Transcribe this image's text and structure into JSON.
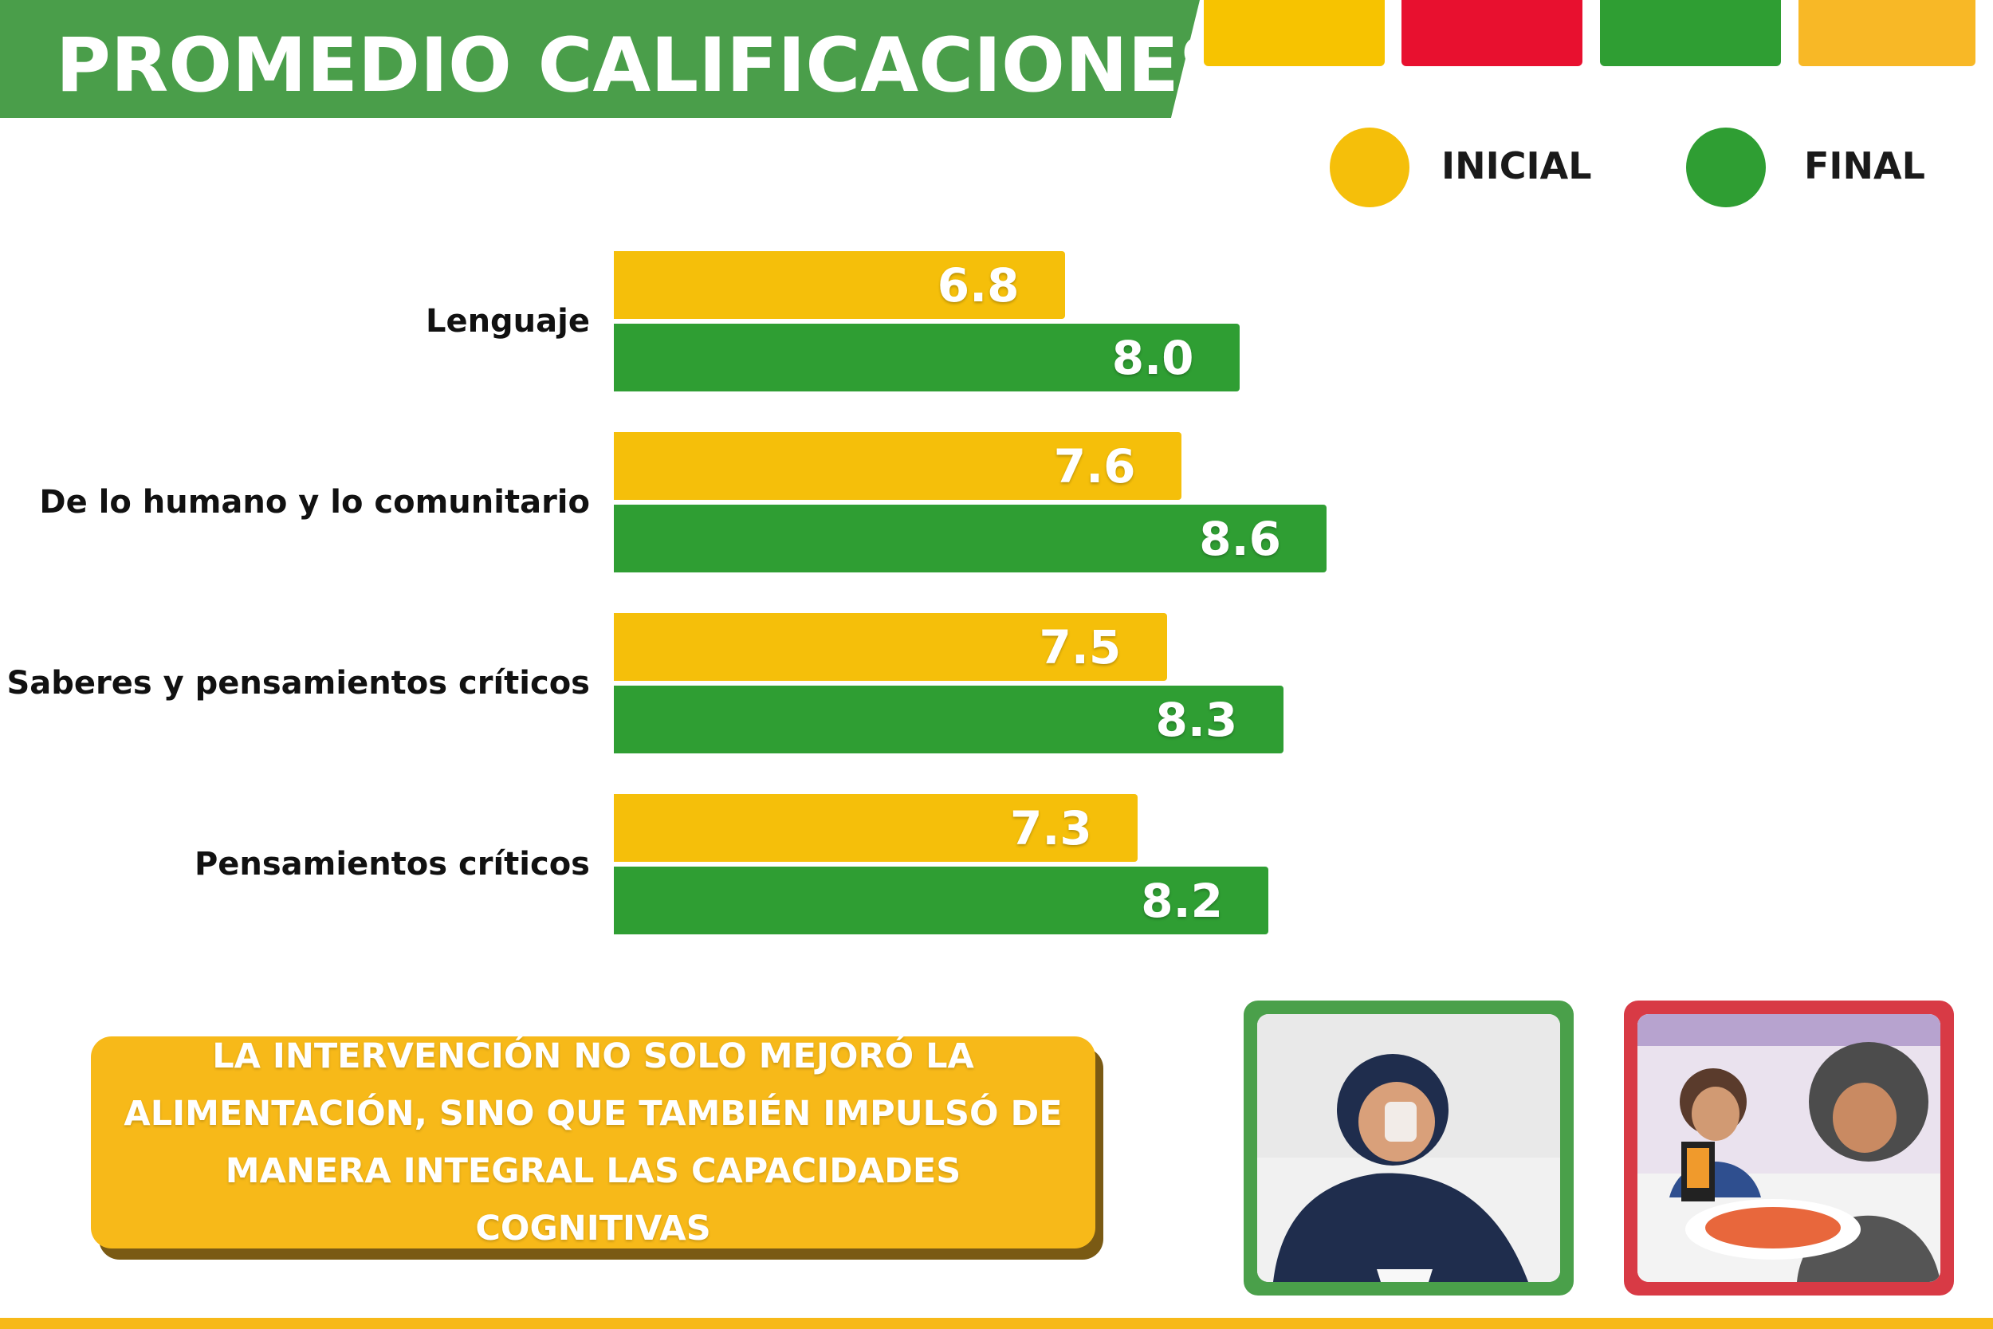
{
  "header": {
    "title": "PROMEDIO CALIFICACIONES"
  },
  "decor_swatch_colors": [
    "#f7c300",
    "#e8102f",
    "#2f9e33",
    "#f8b826"
  ],
  "colors": {
    "inicial": "#f5bf0a",
    "final": "#2f9e33",
    "title_band": "#4a9e4a"
  },
  "legend": {
    "inicial": "INICIAL",
    "final": "FINAL"
  },
  "chart_data": {
    "type": "bar",
    "orientation": "horizontal",
    "categories": [
      "Lenguaje",
      "De lo humano y lo comunitario",
      "Saberes y pensamientos críticos",
      "Pensamientos críticos"
    ],
    "series": [
      {
        "name": "INICIAL",
        "values": [
          6.8,
          7.6,
          7.5,
          7.3
        ],
        "labels": [
          "6.8",
          "7.6",
          "7.5",
          "7.3"
        ]
      },
      {
        "name": "FINAL",
        "values": [
          8.0,
          8.6,
          8.3,
          8.2
        ],
        "labels": [
          "8.0",
          "8.6",
          "8.3",
          "8.2"
        ]
      }
    ],
    "title": "PROMEDIO CALIFICACIONES",
    "grid": false,
    "legend_position": "top-right"
  },
  "callout": {
    "text": "LA INTERVENCIÓN NO SOLO MEJORÓ LA ALIMENTACIÓN, SINO QUE TAMBIÉN IMPULSÓ DE MANERA INTEGRAL LAS CAPACIDADES COGNITIVAS"
  },
  "photos": [
    {
      "frame_color": "#4aa04a"
    },
    {
      "frame_color": "#d83a45"
    }
  ]
}
